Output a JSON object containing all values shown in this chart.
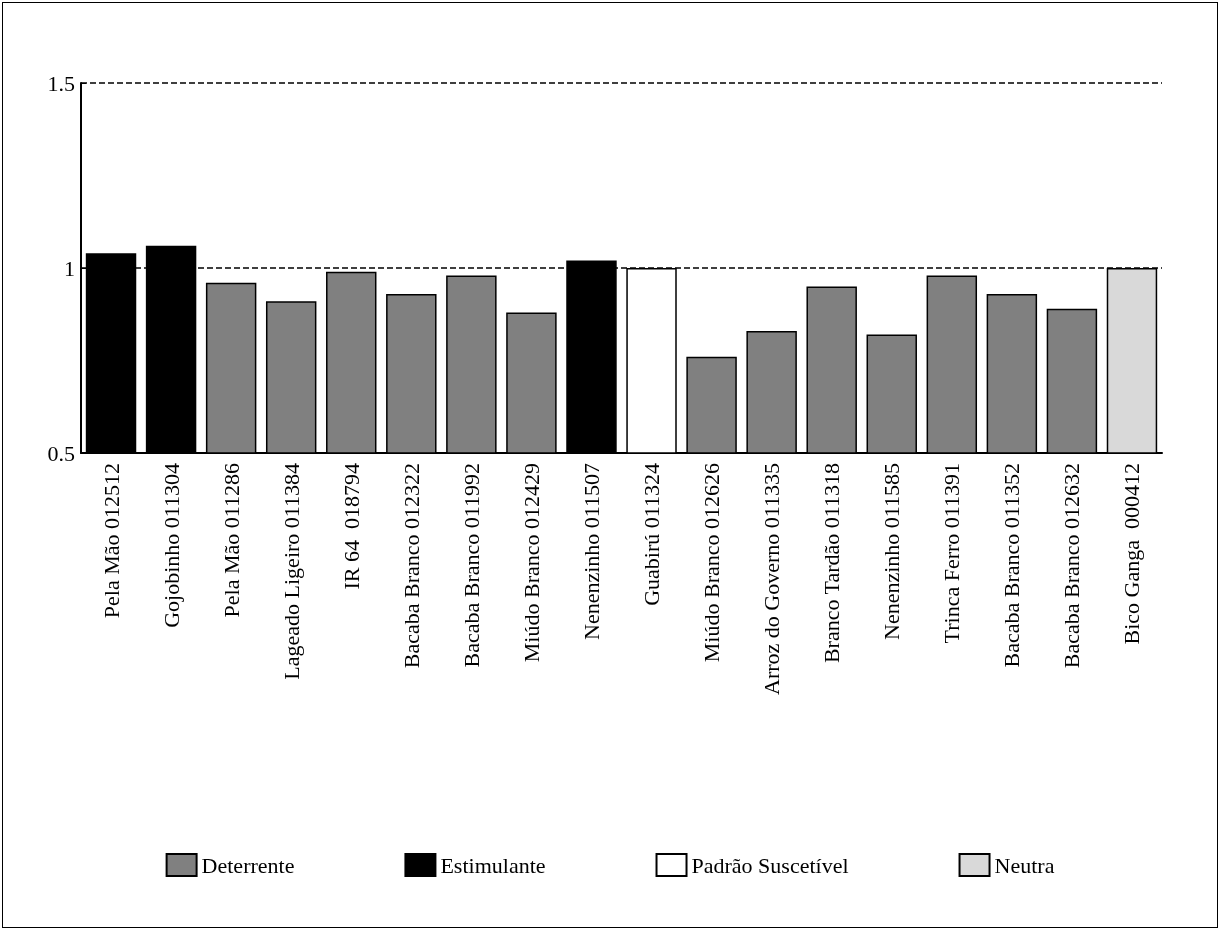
{
  "chart_data": {
    "type": "bar",
    "categories": [
      "Pela Mão 012512",
      "Gojobinho 011304",
      "Pela Mão 011286",
      "Lageado Ligeiro 011384",
      "IR 64  018794",
      "Bacaba Branco 012322",
      "Bacaba Branco 011992",
      "Miúdo Branco 012429",
      "Nenenzinho 011507",
      "Guabirú 011324",
      "Miúdo Branco 012626",
      "Arroz do Governo 011335",
      "Branco Tardão 011318",
      "Nenenzinho 011585",
      "Trinca Ferro 011391",
      "Bacaba Branco 011352",
      "Bacaba Branco 012632",
      "Bico Ganga  000412"
    ],
    "series": [
      {
        "name": "Deterrente",
        "color": "#808080",
        "values": [
          null,
          null,
          0.96,
          0.91,
          0.99,
          0.93,
          0.98,
          0.88,
          null,
          null,
          0.76,
          0.83,
          0.95,
          0.82,
          0.98,
          0.93,
          0.89,
          null
        ]
      },
      {
        "name": "Estimulante",
        "color": "#000000",
        "values": [
          1.04,
          1.06,
          null,
          null,
          null,
          null,
          null,
          null,
          1.02,
          null,
          null,
          null,
          null,
          null,
          null,
          null,
          null,
          null
        ]
      },
      {
        "name": "Padrão Suscetível",
        "color": "#ffffff",
        "values": [
          null,
          null,
          null,
          null,
          null,
          null,
          null,
          null,
          null,
          1.0,
          null,
          null,
          null,
          null,
          null,
          null,
          null,
          null
        ]
      },
      {
        "name": "Neutra",
        "color": "#d9d9d9",
        "values": [
          null,
          null,
          null,
          null,
          null,
          null,
          null,
          null,
          null,
          null,
          null,
          null,
          null,
          null,
          null,
          null,
          null,
          1.0
        ]
      }
    ],
    "ylim": [
      0.5,
      1.5
    ],
    "yticks": [
      0.5,
      1,
      1.5
    ],
    "grid": "y",
    "legend": "bottom"
  }
}
